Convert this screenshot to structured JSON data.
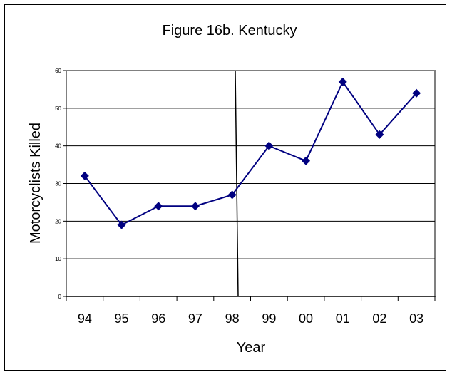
{
  "chart_data": {
    "type": "line",
    "title": "Figure 16b. Kentucky",
    "xlabel": "Year",
    "ylabel": "Motorcyclists Killed",
    "categories": [
      "94",
      "95",
      "96",
      "97",
      "98",
      "99",
      "00",
      "01",
      "02",
      "03"
    ],
    "series": [
      {
        "values": [
          32,
          19,
          24,
          24,
          27,
          40,
          36,
          57,
          43,
          54
        ],
        "color": "#000080"
      }
    ],
    "ylim": [
      0,
      60
    ],
    "yticks": [
      0,
      10,
      20,
      30,
      40,
      50,
      60
    ],
    "grid": true,
    "legend": "none",
    "annotations": [
      {
        "type": "vertical-line",
        "note": "divider near 98"
      }
    ]
  }
}
